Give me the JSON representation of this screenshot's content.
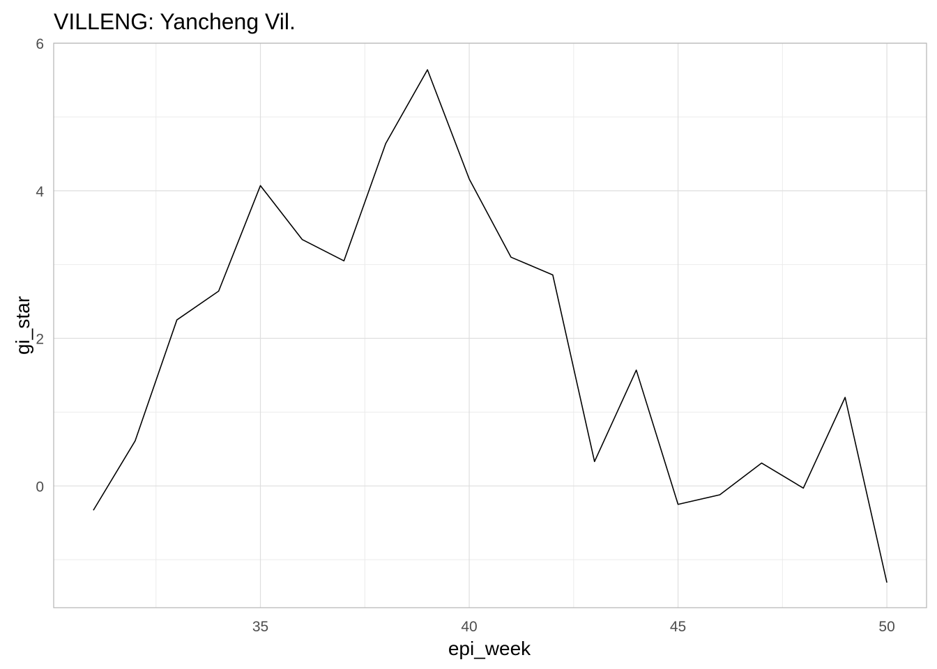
{
  "chart_data": {
    "type": "line",
    "title": "VILLENG: Yancheng Vil.",
    "xlabel": "epi_week",
    "ylabel": "gi_star",
    "xlim": [
      30.05,
      50.95
    ],
    "ylim": [
      -1.65,
      6.0
    ],
    "x_ticks": [
      35,
      40,
      45,
      50
    ],
    "y_ticks": [
      0,
      2,
      4,
      6
    ],
    "grid": true,
    "series": [
      {
        "x": [
          31,
          32,
          33,
          34,
          35,
          36,
          37,
          38,
          39,
          40,
          41,
          42,
          43,
          44,
          45,
          46,
          47,
          48,
          49,
          50
        ],
        "values": [
          -0.33,
          0.61,
          2.25,
          2.64,
          4.07,
          3.34,
          3.05,
          4.64,
          5.64,
          4.16,
          3.1,
          2.86,
          0.33,
          1.57,
          -0.25,
          -0.12,
          0.31,
          -0.03,
          1.2,
          -1.31
        ]
      }
    ],
    "line_color": "#000000"
  }
}
